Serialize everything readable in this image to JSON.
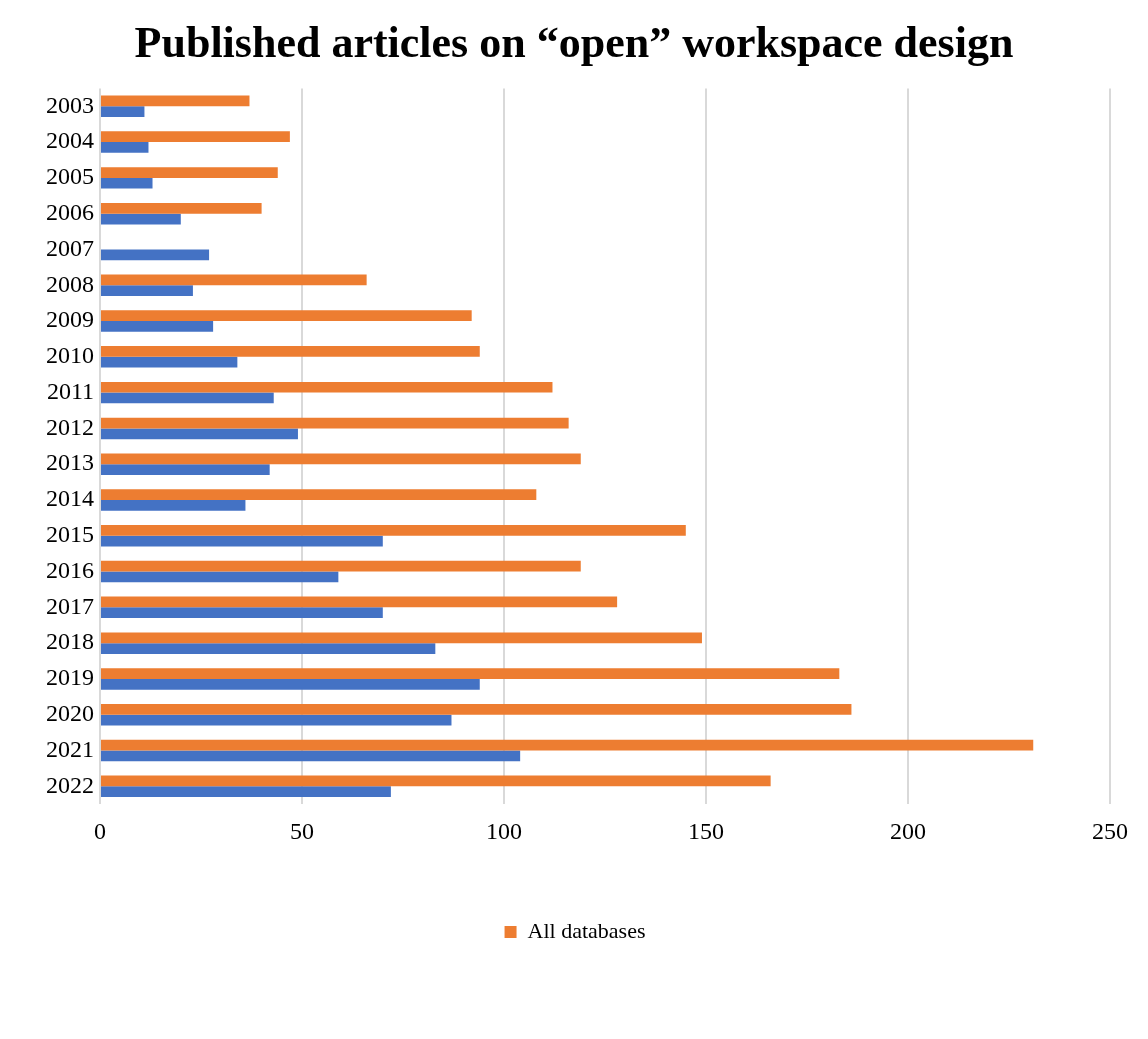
{
  "chart_data": {
    "type": "bar",
    "orientation": "horizontal",
    "title": "Published articles on “open” workspace design",
    "categories": [
      "2003",
      "2004",
      "2005",
      "2006",
      "2007",
      "2008",
      "2009",
      "2010",
      "2011",
      "2012",
      "2013",
      "2014",
      "2015",
      "2016",
      "2017",
      "2018",
      "2019",
      "2020",
      "2021",
      "2022"
    ],
    "series": [
      {
        "name": "All databases",
        "color": "#ed7d31",
        "values": [
          37,
          47,
          44,
          40,
          null,
          66,
          92,
          94,
          112,
          116,
          119,
          108,
          145,
          119,
          128,
          149,
          183,
          186,
          231,
          166
        ]
      },
      {
        "color": "#4472c4",
        "values": [
          11,
          12,
          13,
          20,
          27,
          23,
          28,
          34,
          43,
          49,
          42,
          36,
          70,
          59,
          70,
          83,
          94,
          87,
          104,
          72
        ]
      }
    ],
    "xlim": [
      0,
      250
    ],
    "xticks": [
      0,
      50,
      100,
      150,
      200,
      250
    ],
    "grid": "x",
    "legend": "bottom"
  }
}
